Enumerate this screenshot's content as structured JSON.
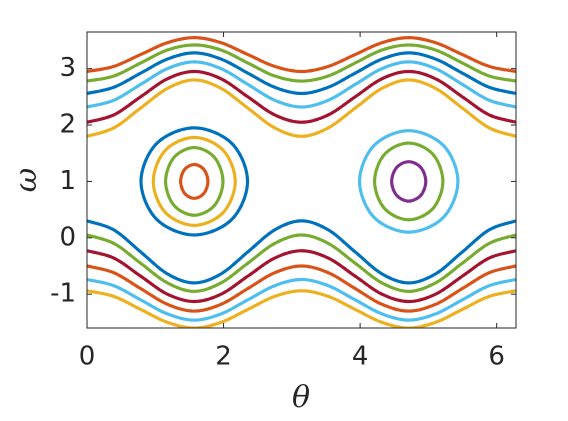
{
  "chart_data": {
    "type": "line",
    "x_label": "θ",
    "y_label": "ω",
    "xlim": [
      0,
      6.283
    ],
    "ylim": [
      -1.6,
      3.65
    ],
    "xticks": [
      0,
      2,
      4,
      6
    ],
    "yticks": [
      -1,
      0,
      1,
      2,
      3
    ],
    "x": [
      0,
      0.393,
      0.785,
      1.178,
      1.571,
      1.963,
      2.356,
      2.749,
      3.142,
      3.534,
      3.927,
      4.32,
      4.712,
      5.105,
      5.498,
      5.89,
      6.283
    ],
    "series": [
      {
        "color": "#D95319",
        "values": [
          2.95,
          3.04,
          3.25,
          3.46,
          3.55,
          3.46,
          3.25,
          3.04,
          2.95,
          3.04,
          3.25,
          3.46,
          3.55,
          3.46,
          3.25,
          3.04,
          2.95
        ]
      },
      {
        "color": "#77AC30",
        "values": [
          2.78,
          2.87,
          3.1,
          3.33,
          3.42,
          3.33,
          3.1,
          2.87,
          2.78,
          2.87,
          3.1,
          3.33,
          3.42,
          3.33,
          3.1,
          2.87,
          2.78
        ]
      },
      {
        "color": "#0072BD",
        "values": [
          2.56,
          2.67,
          2.92,
          3.17,
          3.28,
          3.17,
          2.92,
          2.67,
          2.56,
          2.67,
          2.92,
          3.17,
          3.28,
          3.17,
          2.92,
          2.67,
          2.56
        ]
      },
      {
        "color": "#4DBEEE",
        "values": [
          2.32,
          2.44,
          2.72,
          3.0,
          3.12,
          3.0,
          2.72,
          2.44,
          2.32,
          2.44,
          2.72,
          3.0,
          3.12,
          3.0,
          2.72,
          2.44,
          2.32
        ]
      },
      {
        "color": "#A2142F",
        "values": [
          2.05,
          2.18,
          2.5,
          2.82,
          2.95,
          2.82,
          2.5,
          2.18,
          2.05,
          2.18,
          2.5,
          2.82,
          2.95,
          2.82,
          2.5,
          2.18,
          2.05
        ]
      },
      {
        "color": "#EDB120",
        "values": [
          1.8,
          1.95,
          2.3,
          2.65,
          2.8,
          2.65,
          2.3,
          1.95,
          1.8,
          1.95,
          2.3,
          2.65,
          2.8,
          2.65,
          2.3,
          1.95,
          1.8
        ]
      },
      {
        "color": "#EDB120",
        "values": [
          -0.94,
          -1.04,
          -1.27,
          -1.5,
          -1.6,
          -1.5,
          -1.27,
          -1.04,
          -0.94,
          -1.04,
          -1.27,
          -1.5,
          -1.6,
          -1.5,
          -1.27,
          -1.04,
          -0.94
        ]
      },
      {
        "color": "#4DBEEE",
        "values": [
          -0.74,
          -0.85,
          -1.1,
          -1.35,
          -1.46,
          -1.35,
          -1.1,
          -0.85,
          -0.74,
          -0.85,
          -1.1,
          -1.35,
          -1.46,
          -1.35,
          -1.1,
          -0.85,
          -0.74
        ]
      },
      {
        "color": "#D95319",
        "values": [
          -0.5,
          -0.62,
          -0.9,
          -1.18,
          -1.3,
          -1.18,
          -0.9,
          -0.62,
          -0.5,
          -0.62,
          -0.9,
          -1.18,
          -1.3,
          -1.18,
          -0.9,
          -0.62,
          -0.5
        ]
      },
      {
        "color": "#A2142F",
        "values": [
          -0.23,
          -0.36,
          -0.68,
          -1.0,
          -1.13,
          -1.0,
          -0.68,
          -0.36,
          -0.23,
          -0.36,
          -0.68,
          -1.0,
          -1.13,
          -1.0,
          -0.68,
          -0.36,
          -0.23
        ]
      },
      {
        "color": "#77AC30",
        "values": [
          0.05,
          -0.1,
          -0.45,
          -0.8,
          -0.95,
          -0.8,
          -0.45,
          -0.1,
          0.05,
          -0.1,
          -0.45,
          -0.8,
          -0.95,
          -0.8,
          -0.45,
          -0.1,
          0.05
        ]
      },
      {
        "color": "#0072BD",
        "values": [
          0.3,
          0.14,
          -0.25,
          -0.64,
          -0.8,
          -0.64,
          -0.25,
          0.14,
          0.3,
          0.14,
          -0.25,
          -0.64,
          -0.8,
          -0.64,
          -0.25,
          0.14,
          0.3
        ]
      },
      {
        "color": "#D95319",
        "closed": true,
        "x": [
          1.771,
          1.712,
          1.571,
          1.43,
          1.371,
          1.43,
          1.571,
          1.712
        ],
        "values": [
          1,
          1.212,
          1.3,
          1.212,
          1,
          0.788,
          0.7,
          0.788
        ]
      },
      {
        "color": "#77AC30",
        "closed": true,
        "x": [
          1.991,
          1.868,
          1.571,
          1.274,
          1.151,
          1.274,
          1.571,
          1.868
        ],
        "values": [
          1,
          1.424,
          1.6,
          1.424,
          1,
          0.576,
          0.4,
          0.576
        ]
      },
      {
        "color": "#EDB120",
        "closed": true,
        "x": [
          2.171,
          1.995,
          1.571,
          1.147,
          0.971,
          1.147,
          1.571,
          1.995
        ],
        "values": [
          1,
          1.551,
          1.78,
          1.551,
          1,
          0.449,
          0.22,
          0.449
        ]
      },
      {
        "color": "#0072BD",
        "closed": true,
        "x": [
          2.351,
          2.122,
          1.571,
          1.02,
          0.791,
          1.02,
          1.571,
          2.122
        ],
        "values": [
          1,
          1.672,
          1.95,
          1.672,
          1,
          0.328,
          0.05,
          0.328
        ]
      },
      {
        "color": "#7E2F8E",
        "closed": true,
        "x": [
          4.962,
          4.889,
          4.712,
          4.535,
          4.462,
          4.535,
          4.712,
          4.889
        ],
        "values": [
          1,
          1.247,
          1.35,
          1.247,
          1,
          0.753,
          0.65,
          0.753
        ]
      },
      {
        "color": "#77AC30",
        "closed": true,
        "x": [
          5.212,
          5.066,
          4.712,
          4.358,
          4.212,
          4.358,
          4.712,
          5.066
        ],
        "values": [
          1,
          1.481,
          1.68,
          1.481,
          1,
          0.519,
          0.32,
          0.519
        ]
      },
      {
        "color": "#4DBEEE",
        "closed": true,
        "x": [
          5.432,
          5.221,
          4.712,
          4.203,
          3.992,
          4.203,
          4.712,
          5.221
        ],
        "values": [
          1,
          1.636,
          1.9,
          1.636,
          1,
          0.364,
          0.1,
          0.364
        ]
      }
    ]
  }
}
